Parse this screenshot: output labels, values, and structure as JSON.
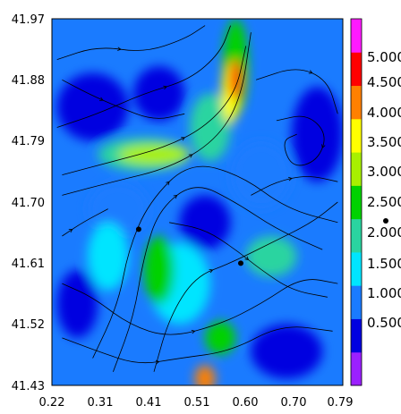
{
  "chart_data": {
    "type": "heatmap",
    "subtype": "filled-contour with streamlines",
    "title": "",
    "xlabel": "",
    "ylabel": "",
    "xlim": [
      0.22,
      0.79
    ],
    "ylim": [
      41.43,
      41.97
    ],
    "x_ticks": [
      "0.22",
      "0.31",
      "0.41",
      "0.51",
      "0.60",
      "0.70",
      "0.79"
    ],
    "y_ticks": [
      "41.43",
      "41.52",
      "41.61",
      "41.70",
      "41.79",
      "41.88",
      "41.97"
    ],
    "colorbar": {
      "levels": [
        "0.500",
        "1.000",
        "1.500",
        "2.000",
        "2.500",
        "3.000",
        "3.500",
        "4.000",
        "4.500",
        "5.000"
      ],
      "colors": [
        "#9b20ff",
        "#0000e0",
        "#1a7bff",
        "#00e5ff",
        "#2ad4a0",
        "#00d200",
        "#a8f000",
        "#ffff00",
        "#ff8000",
        "#ff0000",
        "#ff1aff"
      ]
    },
    "field_blobs": [
      {
        "x": 0.3,
        "y": 41.84,
        "level": 1,
        "rx": 0.07,
        "ry": 0.05
      },
      {
        "x": 0.43,
        "y": 41.86,
        "level": 1,
        "rx": 0.05,
        "ry": 0.04
      },
      {
        "x": 0.74,
        "y": 41.8,
        "level": 1,
        "rx": 0.05,
        "ry": 0.07
      },
      {
        "x": 0.27,
        "y": 41.55,
        "level": 1,
        "rx": 0.04,
        "ry": 0.05
      },
      {
        "x": 0.68,
        "y": 41.48,
        "level": 1,
        "rx": 0.07,
        "ry": 0.04
      },
      {
        "x": 0.52,
        "y": 41.67,
        "level": 1,
        "rx": 0.05,
        "ry": 0.04
      },
      {
        "x": 0.35,
        "y": 41.69,
        "level": 2,
        "rx": 0.06,
        "ry": 0.04
      },
      {
        "x": 0.63,
        "y": 41.74,
        "level": 2,
        "rx": 0.06,
        "ry": 0.05
      },
      {
        "x": 0.47,
        "y": 41.58,
        "level": 3,
        "rx": 0.06,
        "ry": 0.06
      },
      {
        "x": 0.33,
        "y": 41.62,
        "level": 3,
        "rx": 0.04,
        "ry": 0.05
      },
      {
        "x": 0.65,
        "y": 41.62,
        "level": 4,
        "rx": 0.05,
        "ry": 0.03
      },
      {
        "x": 0.4,
        "y": 41.77,
        "level": 4,
        "rx": 0.09,
        "ry": 0.025
      },
      {
        "x": 0.53,
        "y": 41.81,
        "level": 4,
        "rx": 0.04,
        "ry": 0.05
      },
      {
        "x": 0.58,
        "y": 41.9,
        "level": 5,
        "rx": 0.025,
        "ry": 0.07
      },
      {
        "x": 0.43,
        "y": 41.6,
        "level": 5,
        "rx": 0.03,
        "ry": 0.05
      },
      {
        "x": 0.42,
        "y": 41.77,
        "level": 6,
        "rx": 0.07,
        "ry": 0.015
      },
      {
        "x": 0.55,
        "y": 41.5,
        "level": 5,
        "rx": 0.03,
        "ry": 0.025
      },
      {
        "x": 0.57,
        "y": 41.86,
        "level": 7,
        "rx": 0.018,
        "ry": 0.045
      },
      {
        "x": 0.52,
        "y": 41.44,
        "level": 8,
        "rx": 0.02,
        "ry": 0.02
      },
      {
        "x": 0.58,
        "y": 41.88,
        "level": 9,
        "rx": 0.012,
        "ry": 0.03
      }
    ],
    "streamlines": [
      [
        [
          0.24,
          41.74
        ],
        [
          0.34,
          41.76
        ],
        [
          0.44,
          41.78
        ],
        [
          0.52,
          41.81
        ],
        [
          0.58,
          41.86
        ],
        [
          0.6,
          41.93
        ]
      ],
      [
        [
          0.24,
          41.71
        ],
        [
          0.34,
          41.73
        ],
        [
          0.45,
          41.75
        ],
        [
          0.54,
          41.79
        ],
        [
          0.59,
          41.85
        ],
        [
          0.61,
          41.95
        ]
      ],
      [
        [
          0.23,
          41.81
        ],
        [
          0.31,
          41.83
        ],
        [
          0.4,
          41.86
        ],
        [
          0.49,
          41.88
        ],
        [
          0.55,
          41.92
        ],
        [
          0.57,
          41.96
        ]
      ],
      [
        [
          0.23,
          41.91
        ],
        [
          0.31,
          41.93
        ],
        [
          0.4,
          41.92
        ],
        [
          0.48,
          41.94
        ],
        [
          0.52,
          41.96
        ]
      ],
      [
        [
          0.34,
          41.45
        ],
        [
          0.38,
          41.53
        ],
        [
          0.4,
          41.62
        ],
        [
          0.43,
          41.69
        ],
        [
          0.5,
          41.73
        ],
        [
          0.58,
          41.7
        ],
        [
          0.66,
          41.66
        ],
        [
          0.75,
          41.63
        ]
      ],
      [
        [
          0.3,
          41.47
        ],
        [
          0.35,
          41.55
        ],
        [
          0.37,
          41.63
        ],
        [
          0.41,
          41.7
        ],
        [
          0.49,
          41.76
        ],
        [
          0.59,
          41.74
        ],
        [
          0.68,
          41.69
        ],
        [
          0.78,
          41.67
        ]
      ],
      [
        [
          0.42,
          41.45
        ],
        [
          0.45,
          41.53
        ],
        [
          0.5,
          41.59
        ],
        [
          0.57,
          41.61
        ],
        [
          0.65,
          41.64
        ],
        [
          0.73,
          41.67
        ],
        [
          0.78,
          41.7
        ]
      ],
      [
        [
          0.24,
          41.58
        ],
        [
          0.3,
          41.56
        ],
        [
          0.37,
          41.52
        ],
        [
          0.45,
          41.5
        ],
        [
          0.55,
          41.52
        ],
        [
          0.63,
          41.55
        ],
        [
          0.71,
          41.59
        ],
        [
          0.78,
          41.58
        ]
      ],
      [
        [
          0.24,
          41.5
        ],
        [
          0.31,
          41.48
        ],
        [
          0.39,
          41.46
        ],
        [
          0.47,
          41.47
        ],
        [
          0.57,
          41.48
        ],
        [
          0.67,
          41.52
        ],
        [
          0.77,
          41.51
        ]
      ],
      [
        [
          0.66,
          41.82
        ],
        [
          0.72,
          41.83
        ],
        [
          0.76,
          41.8
        ],
        [
          0.74,
          41.76
        ],
        [
          0.69,
          41.75
        ],
        [
          0.67,
          41.79
        ],
        [
          0.7,
          41.8
        ]
      ],
      [
        [
          0.62,
          41.88
        ],
        [
          0.7,
          41.9
        ],
        [
          0.76,
          41.88
        ],
        [
          0.78,
          41.83
        ]
      ],
      [
        [
          0.61,
          41.71
        ],
        [
          0.66,
          41.73
        ],
        [
          0.72,
          41.74
        ],
        [
          0.78,
          41.73
        ]
      ],
      [
        [
          0.24,
          41.65
        ],
        [
          0.28,
          41.67
        ],
        [
          0.33,
          41.69
        ]
      ],
      [
        [
          0.24,
          41.88
        ],
        [
          0.29,
          41.86
        ],
        [
          0.35,
          41.84
        ],
        [
          0.42,
          41.82
        ],
        [
          0.48,
          41.83
        ]
      ],
      [
        [
          0.45,
          41.67
        ],
        [
          0.52,
          41.66
        ],
        [
          0.58,
          41.63
        ],
        [
          0.63,
          41.6
        ],
        [
          0.69,
          41.57
        ],
        [
          0.76,
          41.56
        ]
      ]
    ],
    "points": [
      {
        "x": 0.39,
        "y": 41.66
      },
      {
        "x": 0.59,
        "y": 41.61
      }
    ]
  }
}
